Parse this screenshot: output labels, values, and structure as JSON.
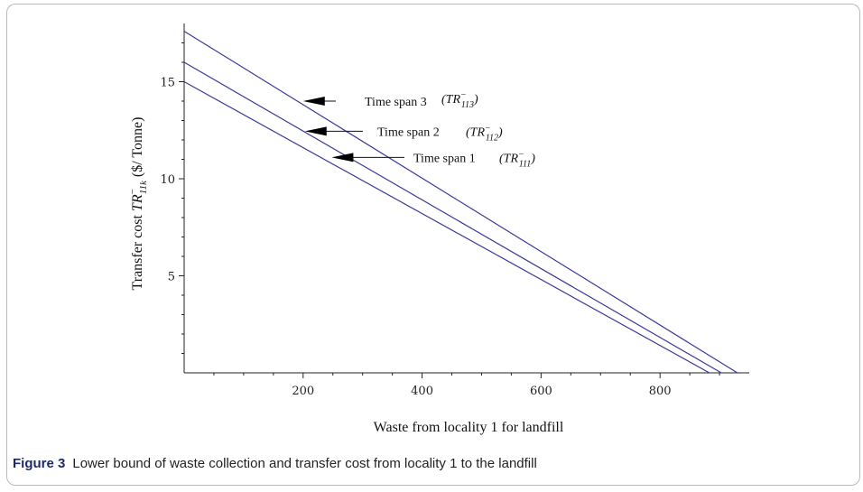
{
  "chart_data": {
    "type": "line",
    "xlabel": "Waste from locality 1 for landfill",
    "ylabel": "Transfer cost TR⁻₁₁ₖ ($/ Tonne)",
    "ylabel_prefix": "Transfer cost",
    "ylabel_math_base": "TR",
    "ylabel_math_sup": "−",
    "ylabel_math_sub": "11k",
    "ylabel_units": "($/ Tonne)",
    "xlim": [
      0,
      950
    ],
    "ylim": [
      0,
      18
    ],
    "xticks": [
      200,
      400,
      600,
      800
    ],
    "yticks": [
      5,
      10,
      15
    ],
    "grid": false,
    "line_color": "#3a3a9c",
    "series": [
      {
        "name": "Time span 1",
        "x": [
          0,
          883
        ],
        "y": [
          15.0,
          0.0
        ]
      },
      {
        "name": "Time span 2",
        "x": [
          0,
          903
        ],
        "y": [
          16.0,
          0.0
        ]
      },
      {
        "name": "Time span 3",
        "x": [
          0,
          930
        ],
        "y": [
          17.6,
          0.0
        ]
      }
    ],
    "annotations": [
      {
        "text": "Time span 3",
        "math_base": "TR",
        "math_sup": "−",
        "math_sub": "113",
        "arrow_to": [
          200,
          14.0
        ]
      },
      {
        "text": "Time span 2",
        "math_base": "TR",
        "math_sup": "−",
        "math_sub": "112",
        "arrow_to": [
          203,
          12.45
        ]
      },
      {
        "text": "Time span 1",
        "math_base": "TR",
        "math_sup": "−",
        "math_sub": "111",
        "arrow_to": [
          248,
          11.1
        ]
      }
    ]
  },
  "caption": {
    "label": "Figure 3",
    "text": "Lower bound of waste collection and transfer cost from locality 1 to the landfill"
  }
}
